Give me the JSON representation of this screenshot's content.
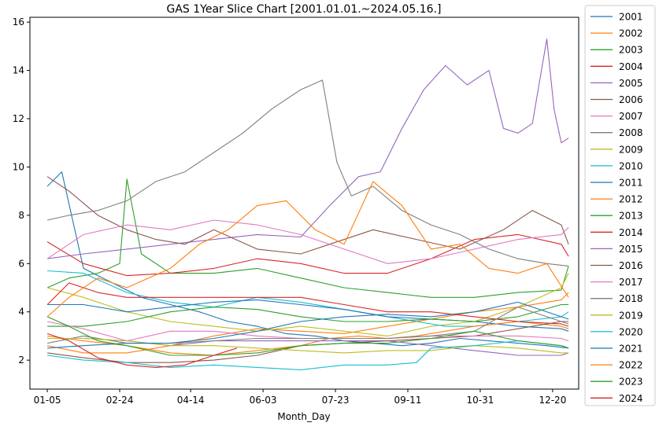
{
  "chart_data": {
    "type": "line",
    "title": "GAS 1Year Slice Chart [2001.01.01.~2024.05.16.]",
    "xlabel": "Month_Day",
    "ylabel": "",
    "x_ticks": [
      "01-05",
      "02-24",
      "04-14",
      "06-03",
      "07-23",
      "09-11",
      "10-31",
      "12-20"
    ],
    "x_tick_days": [
      5,
      55,
      104,
      154,
      204,
      254,
      304,
      354
    ],
    "xlim": [
      -7,
      372
    ],
    "ylim": [
      0.8,
      16.2
    ],
    "y_ticks": [
      2,
      4,
      6,
      8,
      10,
      12,
      14,
      16
    ],
    "grid": false,
    "legend_placement": "outside-right",
    "series": [
      {
        "name": "2001",
        "color": "#1f77b4",
        "x": [
          5,
          15,
          30,
          50,
          70,
          90,
          110,
          130,
          150,
          170,
          190,
          210,
          230,
          250,
          270,
          290,
          310,
          330,
          350,
          365
        ],
        "values": [
          9.2,
          9.8,
          5.8,
          5.2,
          4.6,
          4.3,
          4.0,
          3.6,
          3.4,
          3.1,
          3.0,
          2.8,
          2.7,
          2.6,
          2.7,
          2.9,
          2.8,
          2.7,
          2.6,
          2.5
        ]
      },
      {
        "name": "2002",
        "color": "#ff7f0e",
        "x": [
          5,
          30,
          60,
          90,
          120,
          150,
          180,
          210,
          240,
          270,
          300,
          330,
          360,
          365
        ],
        "values": [
          2.6,
          2.3,
          2.3,
          2.6,
          3.0,
          3.3,
          3.2,
          3.1,
          3.4,
          3.7,
          4.0,
          4.2,
          4.5,
          4.8
        ]
      },
      {
        "name": "2003",
        "color": "#2ca02c",
        "x": [
          5,
          20,
          40,
          55,
          60,
          70,
          90,
          120,
          150,
          180,
          210,
          240,
          270,
          300,
          330,
          360,
          365
        ],
        "values": [
          5.0,
          5.4,
          5.6,
          6.0,
          9.5,
          6.4,
          5.6,
          5.6,
          5.8,
          5.4,
          5.0,
          4.8,
          4.6,
          4.6,
          4.8,
          4.9,
          5.9
        ]
      },
      {
        "name": "2004",
        "color": "#d62728",
        "x": [
          5,
          30,
          60,
          90,
          120,
          150,
          180,
          210,
          240,
          270,
          300,
          330,
          360,
          365
        ],
        "values": [
          6.9,
          6.0,
          5.5,
          5.6,
          5.8,
          6.2,
          6.0,
          5.6,
          5.6,
          6.2,
          7.0,
          7.2,
          6.8,
          6.3
        ]
      },
      {
        "name": "2005",
        "color": "#9467bd",
        "x": [
          5,
          30,
          60,
          90,
          120,
          150,
          180,
          200,
          220,
          235,
          250,
          265,
          280,
          295,
          310,
          320,
          330,
          340,
          350,
          355,
          360,
          365
        ],
        "values": [
          6.2,
          6.4,
          6.6,
          6.8,
          7.0,
          7.2,
          7.1,
          8.4,
          9.6,
          9.8,
          11.6,
          13.2,
          14.2,
          13.4,
          14.0,
          11.6,
          11.4,
          11.8,
          15.3,
          12.4,
          11.0,
          11.2
        ]
      },
      {
        "name": "2006",
        "color": "#8c564b",
        "x": [
          5,
          20,
          40,
          60,
          80,
          100,
          120,
          150,
          180,
          200,
          230,
          260,
          290,
          320,
          340,
          360,
          365
        ],
        "values": [
          9.6,
          9.0,
          8.0,
          7.4,
          7.0,
          6.8,
          7.4,
          6.6,
          6.4,
          6.8,
          7.4,
          7.0,
          6.6,
          7.4,
          8.2,
          7.6,
          6.8
        ]
      },
      {
        "name": "2007",
        "color": "#e377c2",
        "x": [
          5,
          30,
          60,
          90,
          120,
          150,
          180,
          210,
          240,
          270,
          300,
          330,
          360,
          365
        ],
        "values": [
          6.2,
          7.2,
          7.6,
          7.4,
          7.8,
          7.6,
          7.2,
          6.6,
          6.0,
          6.2,
          6.6,
          7.0,
          7.2,
          7.5
        ]
      },
      {
        "name": "2008",
        "color": "#7f7f7f",
        "x": [
          5,
          20,
          40,
          60,
          80,
          100,
          120,
          140,
          160,
          180,
          195,
          205,
          215,
          230,
          250,
          270,
          290,
          310,
          330,
          350,
          365
        ],
        "values": [
          7.8,
          8.0,
          8.2,
          8.6,
          9.4,
          9.8,
          10.6,
          11.4,
          12.4,
          13.2,
          13.6,
          10.2,
          8.8,
          9.2,
          8.2,
          7.6,
          7.2,
          6.6,
          6.2,
          6.0,
          5.9
        ]
      },
      {
        "name": "2009",
        "color": "#bcbd22",
        "x": [
          5,
          30,
          60,
          90,
          120,
          150,
          180,
          210,
          240,
          270,
          300,
          330,
          360,
          365
        ],
        "values": [
          5.0,
          4.6,
          4.0,
          3.6,
          3.4,
          3.2,
          3.4,
          3.2,
          3.0,
          3.4,
          3.6,
          4.2,
          5.0,
          5.6
        ]
      },
      {
        "name": "2010",
        "color": "#17becf",
        "x": [
          5,
          30,
          60,
          90,
          120,
          150,
          180,
          210,
          240,
          260,
          280,
          300,
          330,
          360,
          365
        ],
        "values": [
          5.7,
          5.6,
          4.8,
          4.4,
          4.2,
          4.6,
          4.4,
          4.1,
          3.8,
          3.6,
          3.4,
          3.4,
          3.6,
          3.8,
          4.0
        ]
      },
      {
        "name": "2011",
        "color": "#1f77b4",
        "x": [
          5,
          30,
          60,
          90,
          120,
          150,
          180,
          210,
          240,
          270,
          300,
          330,
          360,
          365
        ],
        "values": [
          4.3,
          4.3,
          4.0,
          4.2,
          4.4,
          4.5,
          4.3,
          4.1,
          3.8,
          3.7,
          3.6,
          3.4,
          3.3,
          3.2
        ]
      },
      {
        "name": "2012",
        "color": "#ff7f0e",
        "x": [
          5,
          30,
          60,
          90,
          120,
          150,
          180,
          200,
          220,
          240,
          260,
          280,
          300,
          330,
          360,
          365
        ],
        "values": [
          3.0,
          2.8,
          2.6,
          2.3,
          2.2,
          2.4,
          2.6,
          2.9,
          3.0,
          2.9,
          3.0,
          3.2,
          3.4,
          3.6,
          3.4,
          3.3
        ]
      },
      {
        "name": "2013",
        "color": "#2ca02c",
        "x": [
          5,
          30,
          60,
          90,
          120,
          150,
          180,
          210,
          240,
          270,
          300,
          330,
          360,
          365
        ],
        "values": [
          3.4,
          3.4,
          3.6,
          4.0,
          4.2,
          4.1,
          3.8,
          3.6,
          3.6,
          3.7,
          3.6,
          3.8,
          4.3,
          4.3
        ]
      },
      {
        "name": "2014",
        "color": "#d62728",
        "x": [
          5,
          20,
          40,
          60,
          90,
          120,
          150,
          180,
          210,
          240,
          270,
          300,
          330,
          360,
          365
        ],
        "values": [
          4.3,
          5.2,
          4.8,
          4.6,
          4.6,
          4.6,
          4.6,
          4.6,
          4.3,
          4.0,
          4.0,
          3.8,
          3.6,
          3.5,
          3.4
        ]
      },
      {
        "name": "2015",
        "color": "#9467bd",
        "x": [
          5,
          30,
          60,
          90,
          120,
          150,
          180,
          210,
          240,
          270,
          300,
          330,
          360,
          365
        ],
        "values": [
          2.9,
          2.9,
          2.8,
          2.6,
          2.8,
          2.8,
          2.8,
          2.8,
          2.8,
          2.6,
          2.4,
          2.2,
          2.2,
          2.3
        ]
      },
      {
        "name": "2016",
        "color": "#8c564b",
        "x": [
          5,
          30,
          60,
          90,
          120,
          150,
          180,
          210,
          240,
          270,
          300,
          330,
          360,
          365
        ],
        "values": [
          2.3,
          2.1,
          1.9,
          1.9,
          2.0,
          2.2,
          2.6,
          2.7,
          2.8,
          2.9,
          3.0,
          3.3,
          3.6,
          3.6
        ]
      },
      {
        "name": "2017",
        "color": "#e377c2",
        "x": [
          5,
          30,
          60,
          90,
          120,
          150,
          180,
          210,
          240,
          270,
          300,
          330,
          360,
          365
        ],
        "values": [
          3.6,
          3.3,
          2.8,
          3.2,
          3.2,
          3.0,
          2.9,
          2.9,
          2.9,
          3.0,
          3.0,
          3.0,
          2.9,
          2.8
        ]
      },
      {
        "name": "2018",
        "color": "#7f7f7f",
        "x": [
          5,
          30,
          60,
          90,
          120,
          150,
          180,
          210,
          240,
          270,
          300,
          330,
          360,
          365
        ],
        "values": [
          2.7,
          3.0,
          2.7,
          2.7,
          2.8,
          2.9,
          2.9,
          2.9,
          2.9,
          3.0,
          3.2,
          4.2,
          3.6,
          3.5
        ]
      },
      {
        "name": "2019",
        "color": "#bcbd22",
        "x": [
          5,
          30,
          60,
          90,
          120,
          150,
          180,
          210,
          240,
          270,
          300,
          330,
          360,
          365
        ],
        "values": [
          2.9,
          2.9,
          2.8,
          2.6,
          2.6,
          2.5,
          2.4,
          2.3,
          2.4,
          2.4,
          2.6,
          2.5,
          2.3,
          2.3
        ]
      },
      {
        "name": "2020",
        "color": "#17becf",
        "x": [
          5,
          30,
          60,
          90,
          120,
          150,
          180,
          210,
          240,
          260,
          270,
          300,
          330,
          360,
          365
        ],
        "values": [
          2.2,
          2.0,
          1.9,
          1.7,
          1.8,
          1.7,
          1.6,
          1.8,
          1.8,
          1.9,
          2.5,
          2.6,
          2.8,
          2.6,
          2.5
        ]
      },
      {
        "name": "2021",
        "color": "#1f77b4",
        "x": [
          5,
          30,
          60,
          90,
          120,
          150,
          180,
          210,
          240,
          270,
          300,
          330,
          360,
          365
        ],
        "values": [
          2.5,
          2.6,
          2.7,
          2.7,
          2.9,
          3.2,
          3.6,
          3.8,
          3.9,
          3.8,
          4.0,
          4.4,
          3.8,
          3.7
        ]
      },
      {
        "name": "2022",
        "color": "#ff7f0e",
        "x": [
          5,
          20,
          40,
          60,
          90,
          110,
          130,
          150,
          170,
          190,
          210,
          230,
          250,
          270,
          290,
          310,
          330,
          350,
          365
        ],
        "values": [
          3.8,
          4.6,
          5.4,
          5.0,
          5.8,
          6.8,
          7.4,
          8.4,
          8.6,
          7.4,
          6.8,
          9.4,
          8.4,
          6.6,
          6.8,
          5.8,
          5.6,
          6.0,
          4.6
        ]
      },
      {
        "name": "2023",
        "color": "#2ca02c",
        "x": [
          5,
          20,
          40,
          60,
          90,
          120,
          150,
          180,
          210,
          240,
          270,
          300,
          330,
          360,
          365
        ],
        "values": [
          3.8,
          3.4,
          2.8,
          2.6,
          2.2,
          2.2,
          2.3,
          2.6,
          2.7,
          2.7,
          2.9,
          3.2,
          2.8,
          2.6,
          2.5
        ]
      },
      {
        "name": "2024",
        "color": "#d62728",
        "x": [
          5,
          20,
          40,
          60,
          80,
          100,
          120,
          136
        ],
        "values": [
          3.1,
          2.8,
          2.1,
          1.8,
          1.7,
          1.8,
          2.2,
          2.5
        ]
      }
    ]
  }
}
